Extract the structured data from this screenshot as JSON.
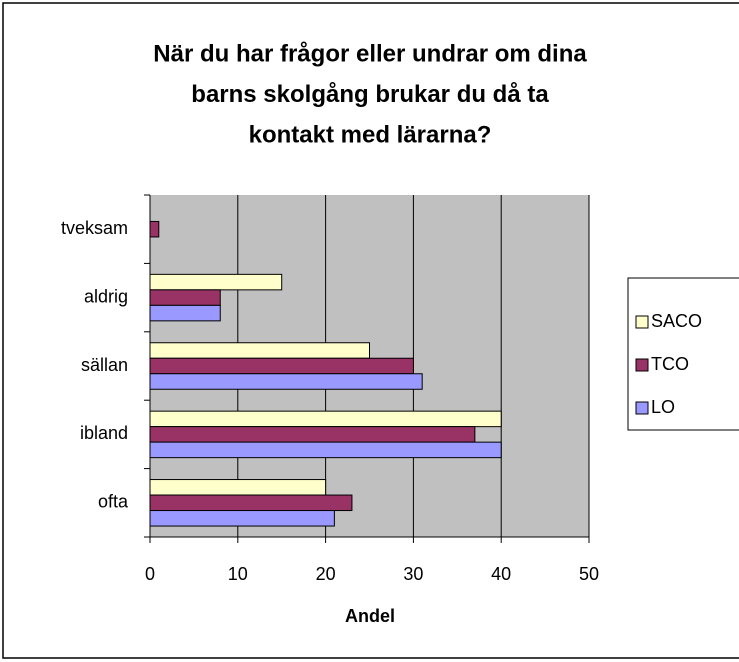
{
  "chart_data": {
    "type": "bar",
    "orientation": "horizontal",
    "title": [
      "När du har frågor eller undrar om dina",
      "barns skolgång brukar du då ta",
      "kontakt med lärarna?"
    ],
    "categories": [
      "tveksam",
      "aldrig",
      "sällan",
      "ibland",
      "ofta"
    ],
    "series": [
      {
        "name": "SACO",
        "color": "#ffffcc",
        "values": [
          0,
          15,
          25,
          40,
          20
        ]
      },
      {
        "name": "TCO",
        "color": "#993366",
        "values": [
          1,
          8,
          30,
          37,
          23
        ]
      },
      {
        "name": "LO",
        "color": "#9999ff",
        "values": [
          0,
          8,
          31,
          40,
          21
        ]
      }
    ],
    "xlabel": "Andel",
    "xlim": [
      0,
      50
    ],
    "xticks": [
      0,
      10,
      20,
      30,
      40,
      50
    ],
    "grid": true,
    "legend": "right"
  }
}
